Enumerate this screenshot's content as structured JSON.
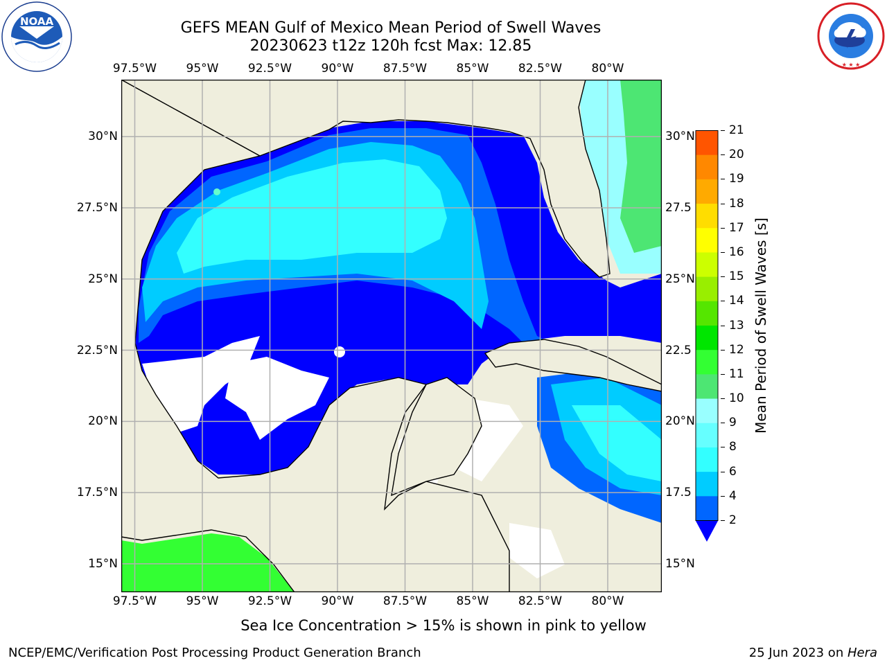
{
  "header": {
    "title_line1": "GEFS MEAN Gulf of Mexico Mean Period of Swell Waves",
    "title_line2": "20230623 t12z 120h fcst   Max: 12.85"
  },
  "logos": {
    "left": {
      "name": "noaa-logo",
      "text": "NOAA",
      "ring_text": "NATIONAL OCEANIC AND ATMOSPHERIC ADMINISTRATION · U.S. DEPARTMENT OF COMMERCE"
    },
    "right": {
      "name": "nws-logo",
      "ring_text": "NATIONAL WEATHER SERVICE"
    }
  },
  "map": {
    "lon_ticks": [
      "97.5°W",
      "95°W",
      "92.5°W",
      "90°W",
      "87.5°W",
      "85°W",
      "82.5°W",
      "80°W"
    ],
    "lat_ticks_left": [
      "30°N",
      "27.5°N",
      "25°N",
      "22.5°N",
      "20°N",
      "17.5°N",
      "15°N"
    ],
    "lat_ticks_right": [
      "30°N",
      "27.5",
      "25°N",
      "22.5",
      "20°N",
      "17.5",
      "15°N"
    ],
    "lon_values": [
      -97.5,
      -95,
      -92.5,
      -90,
      -87.5,
      -85,
      -82.5,
      -80
    ],
    "lat_values": [
      30,
      27.5,
      25,
      22.5,
      20,
      17.5,
      15
    ],
    "extent": {
      "lon_min": -98.0,
      "lon_max": -78.0,
      "lat_min": 14.0,
      "lat_max": 32.0
    }
  },
  "colorbar": {
    "label": "Mean Period of Swell Waves [s]",
    "levels": [
      "2",
      "4",
      "6",
      "8",
      "9",
      "10",
      "11",
      "12",
      "13",
      "14",
      "15",
      "16",
      "17",
      "18",
      "19",
      "20",
      "21"
    ],
    "colors": [
      "#0066ff",
      "#00ccff",
      "#33ffff",
      "#66ffff",
      "#99ffff",
      "#4de673",
      "#33ff33",
      "#00e600",
      "#55e600",
      "#99ee00",
      "#ccff00",
      "#ffff00",
      "#ffdd00",
      "#ffaa00",
      "#ff8800",
      "#ff5500",
      "#ff2200",
      "#ff0000"
    ],
    "extend_color": "#0000ff"
  },
  "colors": {
    "land": "#efeedd",
    "period_lt2": "#0000ff",
    "period_2_4": "#0066ff",
    "period_4_6": "#00ccff",
    "period_6_8": "#33ffff",
    "period_9_10": "#66ffcc",
    "green": "#33ff33",
    "no_data": "#ffffff",
    "grid": "#b0b0b0"
  },
  "footer": {
    "note": "Sea Ice Concentration > 15% is shown in pink to yellow",
    "left": "NCEP/EMC/Verification Post Processing Product Generation Branch",
    "right_prefix": "25 Jun 2023 on ",
    "right_machine": "Hera"
  }
}
